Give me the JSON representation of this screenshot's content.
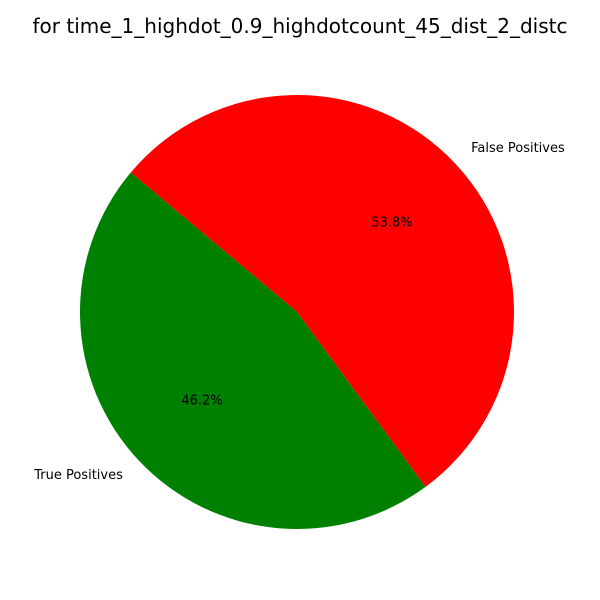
{
  "chart_data": {
    "type": "pie",
    "title": "for time_1_highdot_0.9_highdotcount_45_dist_2_distc",
    "categories": [
      "True Positives",
      "False Positives"
    ],
    "values": [
      46.2,
      53.8
    ],
    "percent_labels": [
      "46.2%",
      "53.8%"
    ],
    "colors": [
      "#008000",
      "#ff0000"
    ],
    "start_angle_deg": 140,
    "direction": "counterclockwise"
  }
}
